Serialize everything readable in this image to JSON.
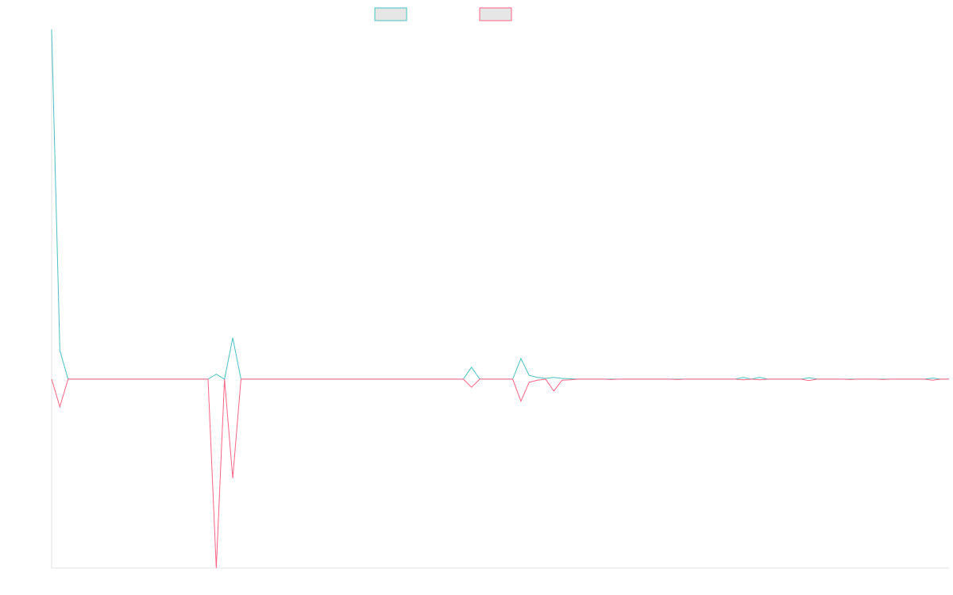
{
  "chart_data": {
    "type": "line",
    "categories": [
      null,
      null,
      null,
      null,
      null,
      null,
      null,
      null,
      null,
      null,
      null,
      null,
      null,
      null,
      null,
      null,
      null,
      null,
      null,
      null,
      null,
      null,
      null,
      null,
      null,
      null,
      null,
      null,
      null,
      null,
      null,
      null,
      null,
      null,
      null,
      null,
      null,
      null,
      null,
      null,
      null,
      null,
      null,
      null,
      null,
      null,
      null,
      null,
      null,
      null,
      null,
      null,
      null,
      null,
      null,
      null,
      null,
      null,
      null,
      null,
      null,
      null,
      null,
      null,
      null,
      null,
      null,
      null,
      null,
      null,
      null,
      null,
      null,
      null,
      null,
      null,
      null,
      null,
      null,
      null,
      null,
      null,
      null,
      null,
      null,
      null,
      null,
      null,
      null,
      null,
      null,
      null,
      null,
      null,
      null,
      null,
      null,
      null,
      null,
      null,
      null,
      null,
      null,
      null,
      null,
      null,
      null,
      null,
      null,
      null
    ],
    "series": [
      {
        "color": "#4bc0c0",
        "values": [
          100,
          8.2,
          0,
          0,
          0,
          0,
          0,
          0,
          0,
          0,
          0,
          0,
          0,
          0,
          0,
          0,
          0,
          0,
          0,
          0,
          1.4,
          0,
          11.8,
          0,
          0,
          0,
          0,
          0,
          0,
          0,
          0,
          0,
          0,
          0,
          0,
          0,
          0,
          0,
          0,
          0,
          0,
          0,
          0,
          0,
          0,
          0,
          0,
          0,
          0,
          0,
          0,
          3.4,
          0,
          0,
          0,
          0,
          0,
          5.9,
          1.1,
          0.5,
          0.2,
          0.5,
          0.2,
          0.1,
          0,
          0,
          0,
          0,
          0,
          0,
          0,
          0,
          0,
          0,
          0,
          0,
          0,
          0,
          0,
          0,
          0,
          0,
          0,
          0,
          0.5,
          0,
          0.5,
          0,
          0,
          0,
          0,
          0,
          0.4,
          0,
          0,
          0,
          0,
          0,
          0,
          0,
          0,
          0,
          0,
          0,
          0,
          0,
          0,
          0.3,
          0,
          0
        ]
      },
      {
        "color": "#ff6384",
        "values": [
          0,
          -7.9,
          0,
          0,
          0,
          0,
          0,
          0,
          0,
          0,
          0,
          0,
          0,
          0,
          0,
          0,
          0,
          0,
          0,
          0,
          -54,
          0,
          -28.3,
          0,
          0,
          0,
          0,
          0,
          0,
          0,
          0,
          0,
          0,
          0,
          0,
          0,
          0,
          0,
          0,
          0,
          0,
          0,
          0,
          0,
          0,
          0,
          0,
          0,
          0,
          0,
          0,
          -2.3,
          0,
          0,
          0,
          0,
          0,
          -6.3,
          -0.9,
          -0.3,
          0,
          -3.4,
          -0.3,
          -0.2,
          0,
          0,
          0,
          0,
          -0.1,
          0,
          0,
          0,
          0,
          0,
          0,
          0,
          -0.1,
          0,
          0,
          0,
          0,
          0,
          0,
          0,
          -0.2,
          0,
          -0.2,
          0,
          0,
          0,
          0,
          0,
          -0.4,
          0,
          0,
          0,
          0,
          -0.1,
          0,
          0,
          0,
          -0.1,
          0,
          0,
          0,
          0,
          0,
          -0.3,
          0,
          0
        ]
      }
    ],
    "ylim": [
      -54,
      100
    ]
  }
}
